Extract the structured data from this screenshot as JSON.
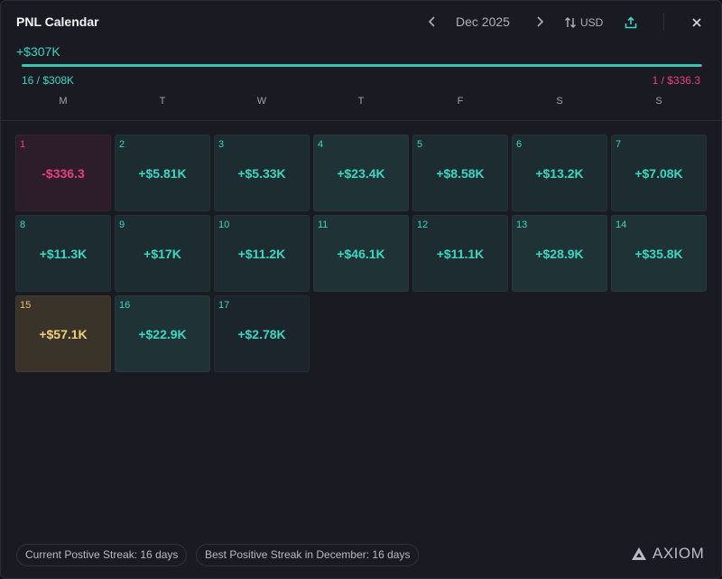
{
  "header": {
    "title": "PNL Calendar",
    "month": "Dec 2025",
    "currency": "USD"
  },
  "summary": {
    "total": "+$307K",
    "positive": "16 / $308K",
    "negative": "1 / $336.3",
    "positive_fraction": 0.999
  },
  "weekdays": [
    "M",
    "T",
    "W",
    "T",
    "F",
    "S",
    "S"
  ],
  "days": [
    {
      "day": "1",
      "value": "-$336.3",
      "kind": "neg"
    },
    {
      "day": "2",
      "value": "+$5.81K",
      "kind": "pos"
    },
    {
      "day": "3",
      "value": "+$5.33K",
      "kind": "pos"
    },
    {
      "day": "4",
      "value": "+$23.4K",
      "kind": "pos strong"
    },
    {
      "day": "5",
      "value": "+$8.58K",
      "kind": "pos"
    },
    {
      "day": "6",
      "value": "+$13.2K",
      "kind": "pos"
    },
    {
      "day": "7",
      "value": "+$7.08K",
      "kind": "pos"
    },
    {
      "day": "8",
      "value": "+$11.3K",
      "kind": "pos"
    },
    {
      "day": "9",
      "value": "+$17K",
      "kind": "pos"
    },
    {
      "day": "10",
      "value": "+$11.2K",
      "kind": "pos"
    },
    {
      "day": "11",
      "value": "+$46.1K",
      "kind": "pos strong"
    },
    {
      "day": "12",
      "value": "+$11.1K",
      "kind": "pos"
    },
    {
      "day": "13",
      "value": "+$28.9K",
      "kind": "pos strong"
    },
    {
      "day": "14",
      "value": "+$35.8K",
      "kind": "pos strong"
    },
    {
      "day": "15",
      "value": "+$57.1K",
      "kind": "gold"
    },
    {
      "day": "16",
      "value": "+$22.9K",
      "kind": "pos strong"
    },
    {
      "day": "17",
      "value": "+$2.78K",
      "kind": "pos weak"
    }
  ],
  "footer": {
    "current_streak": "Current Postive Streak: 16 days",
    "best_streak": "Best Positive Streak in December: 16 days",
    "brand": "AXIOM"
  },
  "colors": {
    "positive": "#3dd6c0",
    "negative": "#e8407e",
    "best_day": "#f0cf7a",
    "panel": "#1a1a22"
  },
  "icons": {
    "prev": "chevron-left-icon",
    "next": "chevron-right-icon",
    "currency": "swap-vertical-icon",
    "share": "share-upload-icon",
    "close": "close-icon",
    "logo": "axiom-logo-icon"
  }
}
